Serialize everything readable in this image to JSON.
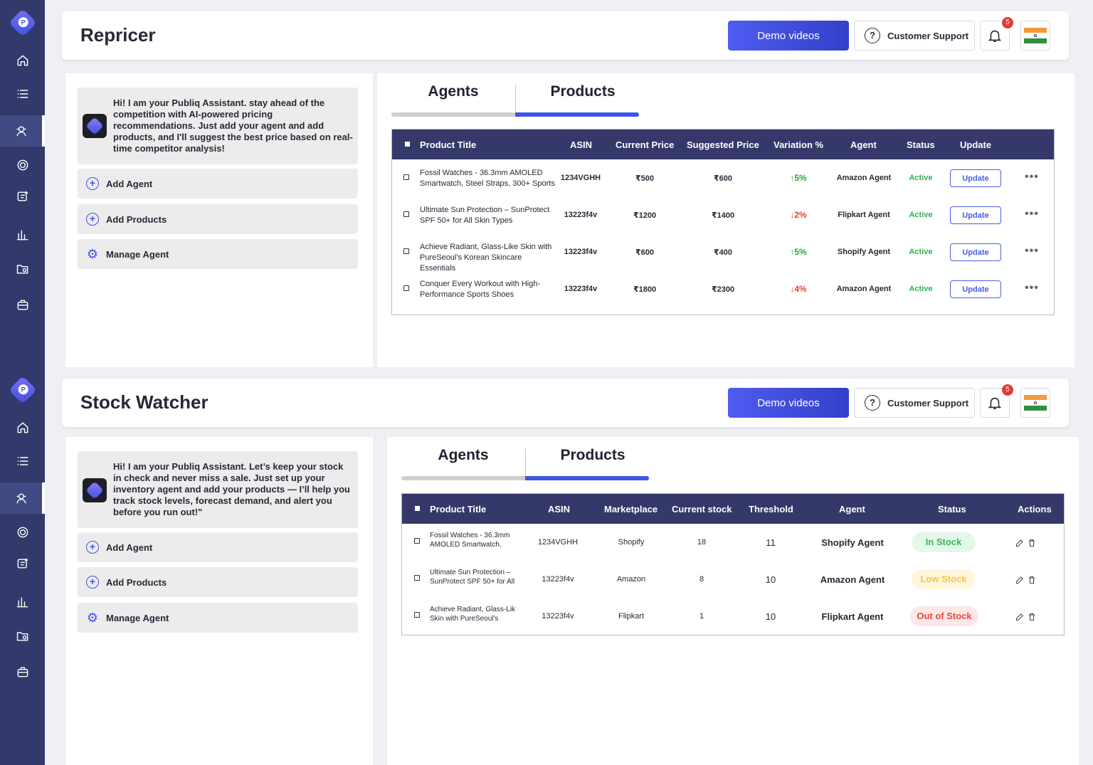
{
  "sidebar": {
    "logo_letter": "P",
    "items": [
      "home-icon",
      "list-icon",
      "agent-icon",
      "repricer-icon",
      "stock-icon",
      "chart-icon",
      "folder-icon",
      "briefcase-icon"
    ]
  },
  "common": {
    "demo_label": "Demo videos",
    "support_label": "Customer Support",
    "notifications": "5",
    "tab_agents": "Agents",
    "tab_products": "Products",
    "add_agent": "Add Agent",
    "add_products": "Add Products",
    "manage_agent": "Manage Agent"
  },
  "repricer": {
    "title": "Repricer",
    "assistant_text": "Hi! I am your Publiq Assistant. stay ahead of the competition with AI-powered pricing recommendations. Just add your agent and add products, and I'll suggest the best price based on real-time competitor analysis!",
    "columns": [
      "Product Title",
      "ASIN",
      "Current Price",
      "Suggested Price",
      "Variation %",
      "Agent",
      "Status",
      "Update"
    ],
    "rows": [
      {
        "title": "Fossil Watches - 36.3mm AMOLED Smartwatch, Steel Straps, 300+ Sports",
        "asin": "1234VGHH",
        "current": "₹500",
        "suggested": "₹600",
        "variation": "↑5%",
        "dir": "up",
        "agent": "Amazon Agent",
        "status": "Active",
        "update": "Update"
      },
      {
        "title": "Ultimate Sun Protection – SunProtect SPF 50+ for All Skin Types",
        "asin": "13223f4v",
        "current": "₹1200",
        "suggested": "₹1400",
        "variation": "↓2%",
        "dir": "down",
        "agent": "Flipkart Agent",
        "status": "Active",
        "update": "Update"
      },
      {
        "title": "Achieve Radiant, Glass-Like Skin with PureSeoul's Korean Skincare Essentials",
        "asin": "13223f4v",
        "current": "₹600",
        "suggested": "₹400",
        "variation": "↑5%",
        "dir": "up",
        "agent": "Shopify Agent",
        "status": "Active",
        "update": "Update"
      },
      {
        "title": "Conquer Every Workout with High-Performance Sports Shoes",
        "asin": "13223f4v",
        "current": "₹1800",
        "suggested": "₹2300",
        "variation": "↓4%",
        "dir": "down",
        "agent": "Amazon Agent",
        "status": "Active",
        "update": "Update"
      }
    ]
  },
  "stock": {
    "title": "Stock Watcher",
    "assistant_text": "Hi! I am your Publiq Assistant. Let’s keep your stock in check and never miss a sale. Just set up your inventory agent and add your products — I’ll help you track stock levels, forecast demand, and alert you before you run out!\"",
    "columns": [
      "Product Title",
      "ASIN",
      "Marketplace",
      "Current stock",
      "Threshold",
      "Agent",
      "Status",
      "Actions"
    ],
    "rows": [
      {
        "title": "Fossil Watches - 36.3mm AMOLED Smartwatch,",
        "asin": "1234VGHH",
        "marketplace": "Shopify",
        "stock": "18",
        "threshold": "11",
        "agent": "Shopify Agent",
        "status": "In Stock",
        "kind": "in"
      },
      {
        "title": "Ultimate Sun Protection – SunProtect SPF 50+ for All",
        "asin": "13223f4v",
        "marketplace": "Amazon",
        "stock": "8",
        "threshold": "10",
        "agent": "Amazon Agent",
        "status": "Low Stock",
        "kind": "low"
      },
      {
        "title": "Achieve Radiant, Glass-Lik Skin with PureSeoul's",
        "asin": "13223f4v",
        "marketplace": "Flipkart",
        "stock": "1",
        "threshold": "10",
        "agent": "Flipkart Agent",
        "status": "Out of Stock",
        "kind": "out"
      }
    ]
  },
  "colors": {
    "sidebar": "#33396b",
    "accent": "#3d55e8",
    "table_header": "#34396a"
  }
}
